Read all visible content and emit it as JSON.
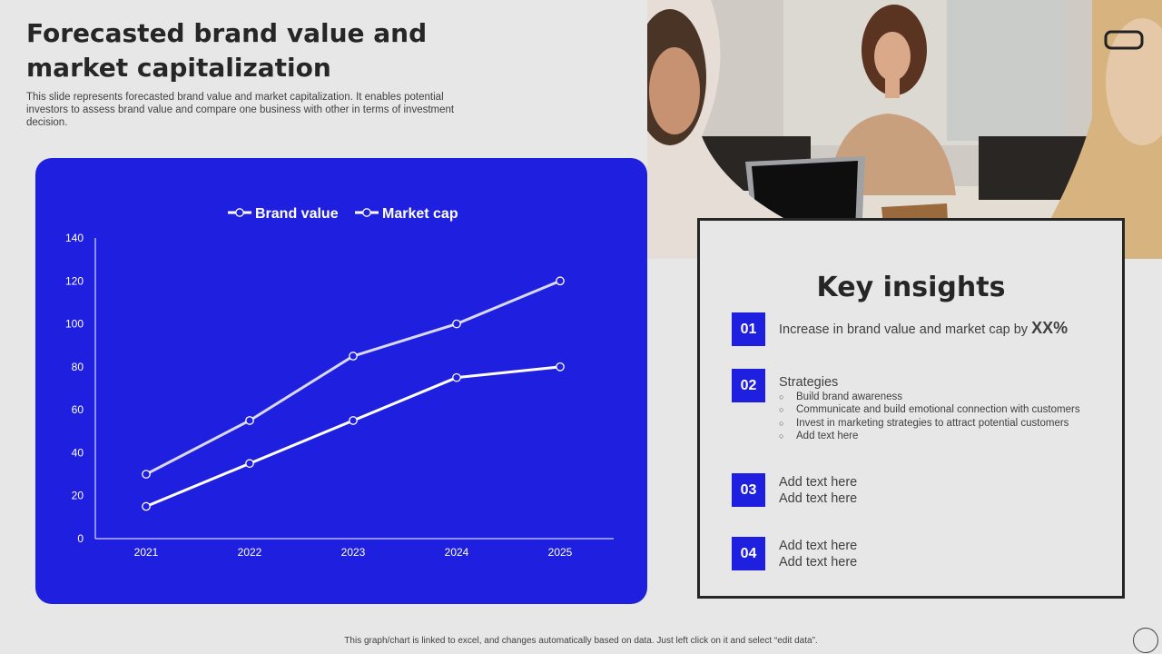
{
  "slide": {
    "title": "Forecasted brand value and market capitalization",
    "subtitle": "This slide represents forecasted brand value and market capitalization. It enables potential investors to assess brand value and compare one business with other in terms of investment decision.",
    "footer": "This graph/chart is linked to excel, and changes automatically based on data. Just left click on it and select “edit data”."
  },
  "chart_data": {
    "type": "line",
    "categories": [
      "2021",
      "2022",
      "2023",
      "2024",
      "2025"
    ],
    "series": [
      {
        "name": "Brand value",
        "values": [
          30,
          55,
          85,
          100,
          120
        ]
      },
      {
        "name": "Market cap",
        "values": [
          15,
          35,
          55,
          75,
          80
        ]
      }
    ],
    "ylim": [
      0,
      140
    ],
    "yticks": [
      0,
      20,
      40,
      60,
      80,
      100,
      120,
      140
    ],
    "legend_position": "top-center",
    "grid": false,
    "colors": {
      "background": "#1f1fdf",
      "brand_value_line": "#d9d9f5",
      "market_cap_line": "#ffffff"
    }
  },
  "insights": {
    "title": "Key insights",
    "items": [
      {
        "num": "01",
        "text": "Increase in brand value and market cap by ",
        "highlight": "XX%"
      },
      {
        "num": "02",
        "heading": "Strategies",
        "bullets": [
          "Build brand awareness",
          "Communicate and build emotional connection with customers",
          "Invest in marketing strategies to attract potential customers",
          "Add text here"
        ]
      },
      {
        "num": "03",
        "lines": [
          "Add text here",
          "Add text here"
        ]
      },
      {
        "num": "04",
        "lines": [
          "Add text here",
          "Add text here"
        ]
      }
    ]
  },
  "colors": {
    "accent": "#1f1fdf",
    "text": "#262626",
    "background": "#e7e7e7"
  }
}
